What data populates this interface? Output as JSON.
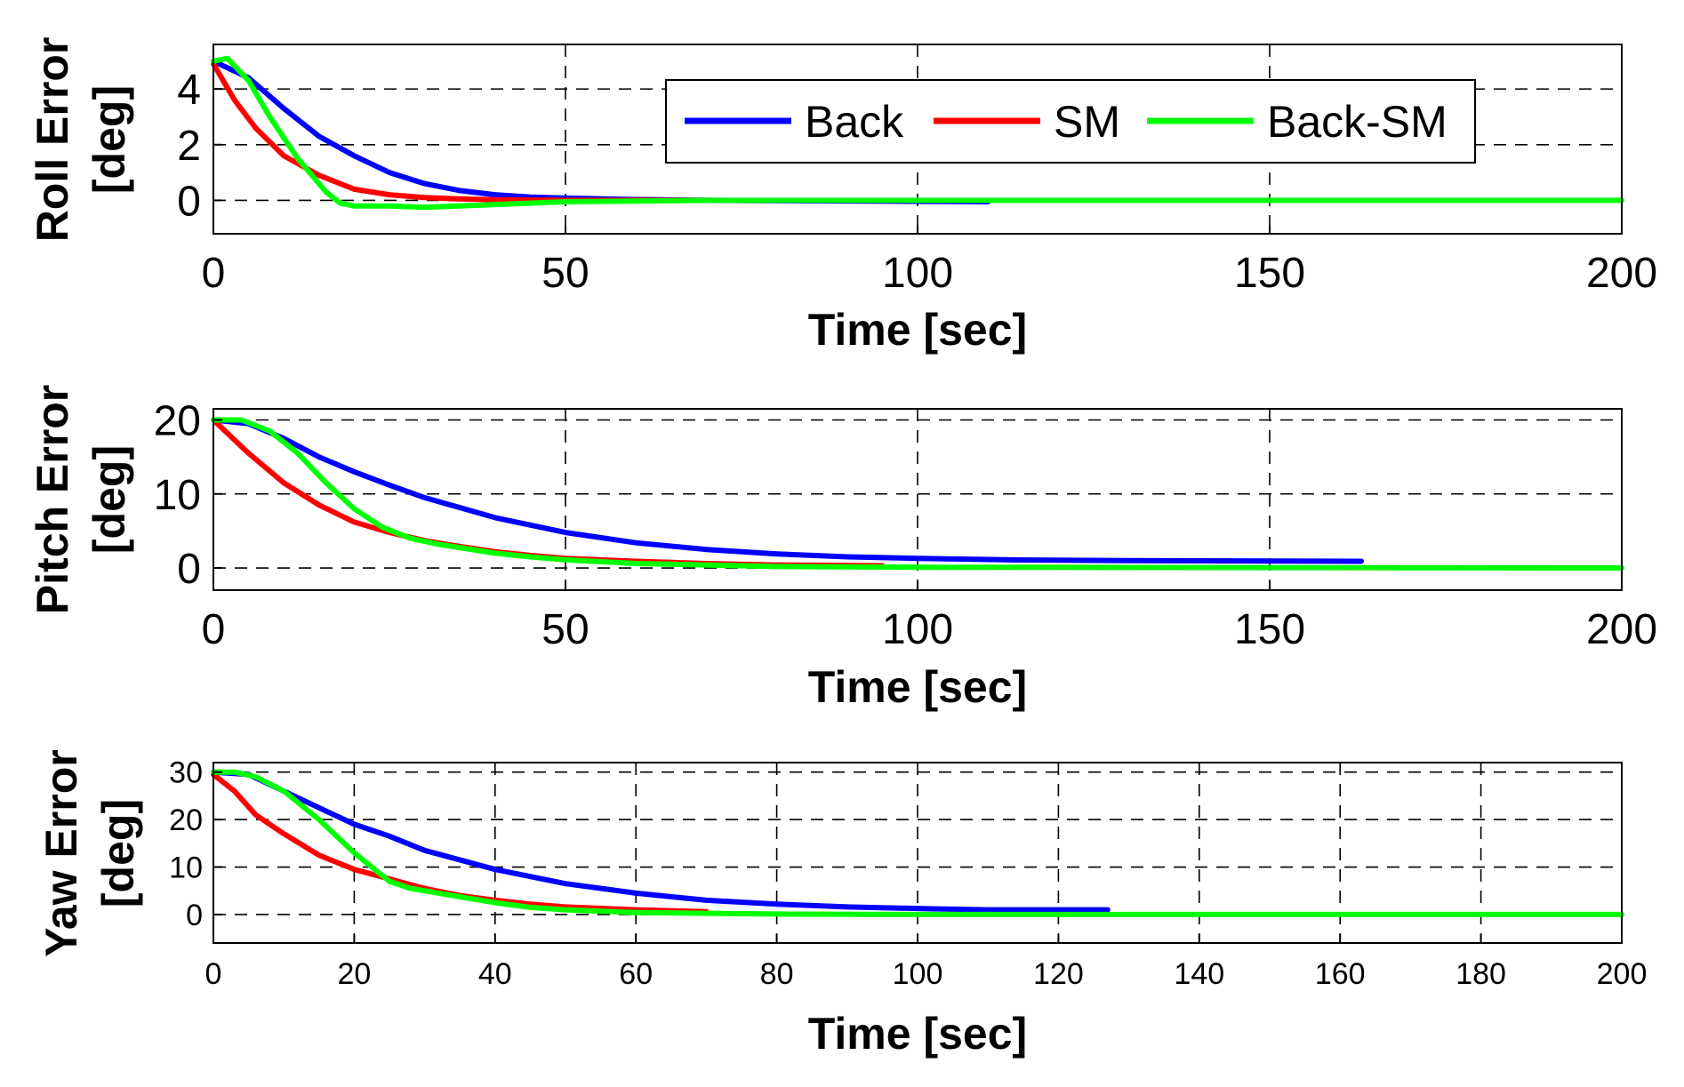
{
  "colors": {
    "back": "#0000ff",
    "sm": "#ff0000",
    "back_sm": "#00ff00",
    "grid": "#000000"
  },
  "legend": {
    "placement": "top-right of first subplot",
    "entries": [
      {
        "label": "Back",
        "color": "#0000ff"
      },
      {
        "label": "SM",
        "color": "#ff0000"
      },
      {
        "label": "Back-SM",
        "color": "#00ff00"
      }
    ]
  },
  "chart_data": [
    {
      "type": "line",
      "ylabel_line1": "Roll Error",
      "ylabel_line2": "[deg]",
      "xlabel": "Time [sec]",
      "xlim": [
        0,
        200
      ],
      "ylim": [
        -1.2,
        5.6
      ],
      "xticks": [
        0,
        50,
        100,
        150,
        200
      ],
      "xtick_labels": [
        "0",
        "50",
        "100",
        "150",
        "200"
      ],
      "yticks": [
        0,
        2,
        4
      ],
      "ytick_labels": [
        "0",
        "2",
        "4"
      ],
      "grid": true,
      "series": [
        {
          "name": "Back",
          "x": [
            0,
            5,
            10,
            15,
            20,
            25,
            30,
            35,
            40,
            45,
            50,
            60,
            70,
            110
          ],
          "y": [
            5,
            4.4,
            3.3,
            2.3,
            1.6,
            1.0,
            0.6,
            0.35,
            0.2,
            0.12,
            0.08,
            0.03,
            0.0,
            -0.05
          ]
        },
        {
          "name": "SM",
          "x": [
            0,
            3,
            6,
            10,
            15,
            20,
            25,
            30,
            35,
            40,
            50,
            70
          ],
          "y": [
            4.9,
            3.6,
            2.6,
            1.6,
            0.9,
            0.4,
            0.2,
            0.1,
            0.05,
            0.02,
            0.0,
            0.0
          ]
        },
        {
          "name": "Back-SM",
          "x": [
            0,
            2,
            5,
            8,
            12,
            16,
            18,
            20,
            25,
            30,
            35,
            40,
            50,
            70,
            200
          ],
          "y": [
            5,
            5.1,
            4.3,
            3.0,
            1.5,
            0.3,
            -0.1,
            -0.2,
            -0.2,
            -0.25,
            -0.2,
            -0.15,
            -0.05,
            0.0,
            0.0
          ]
        }
      ]
    },
    {
      "type": "line",
      "ylabel_line1": "Pitch Error",
      "ylabel_line2": "[deg]",
      "xlabel": "Time [sec]",
      "xlim": [
        0,
        200
      ],
      "ylim": [
        -3,
        21.5
      ],
      "xticks": [
        0,
        50,
        100,
        150,
        200
      ],
      "xtick_labels": [
        "0",
        "50",
        "100",
        "150",
        "200"
      ],
      "yticks": [
        0,
        10,
        20
      ],
      "ytick_labels": [
        "0",
        "10",
        "20"
      ],
      "grid": true,
      "series": [
        {
          "name": "Back",
          "x": [
            0,
            5,
            10,
            15,
            20,
            25,
            30,
            40,
            50,
            60,
            70,
            80,
            90,
            100,
            113,
            130,
            163
          ],
          "y": [
            20,
            19.5,
            17.5,
            15,
            13,
            11.2,
            9.5,
            6.8,
            4.8,
            3.4,
            2.5,
            1.9,
            1.5,
            1.3,
            1.1,
            1.0,
            0.9
          ]
        },
        {
          "name": "SM",
          "x": [
            0,
            5,
            10,
            15,
            20,
            25,
            30,
            35,
            40,
            45,
            50,
            60,
            70,
            80,
            95
          ],
          "y": [
            20,
            15.5,
            11.5,
            8.5,
            6.2,
            4.8,
            3.7,
            2.9,
            2.2,
            1.7,
            1.3,
            0.9,
            0.6,
            0.4,
            0.3
          ]
        },
        {
          "name": "Back-SM",
          "x": [
            0,
            4,
            8,
            12,
            16,
            20,
            24,
            28,
            32,
            36,
            40,
            45,
            50,
            60,
            80,
            100,
            200
          ],
          "y": [
            20,
            20,
            18.5,
            15.5,
            11.5,
            8.0,
            5.5,
            4.0,
            3.2,
            2.6,
            2.0,
            1.5,
            1.1,
            0.6,
            0.2,
            0.1,
            0.0
          ]
        }
      ]
    },
    {
      "type": "line",
      "ylabel_line1": "Yaw Error",
      "ylabel_line2": "[deg]",
      "xlabel": "Time [sec]",
      "xlim": [
        0,
        200
      ],
      "ylim": [
        -6,
        32
      ],
      "xticks": [
        0,
        20,
        40,
        60,
        80,
        100,
        120,
        140,
        160,
        180,
        200
      ],
      "xtick_labels": [
        "0",
        "20",
        "40",
        "60",
        "80",
        "100",
        "120",
        "140",
        "160",
        "180",
        "200"
      ],
      "yticks": [
        0,
        10,
        20,
        30
      ],
      "ytick_labels": [
        "0",
        "10",
        "20",
        "30"
      ],
      "grid": true,
      "series": [
        {
          "name": "Back",
          "x": [
            0,
            5,
            10,
            15,
            20,
            25,
            30,
            40,
            50,
            60,
            70,
            80,
            90,
            102,
            110,
            127
          ],
          "y": [
            30,
            29.5,
            26,
            22.5,
            19,
            16.5,
            13.5,
            9.5,
            6.5,
            4.5,
            3.0,
            2.2,
            1.6,
            1.2,
            1.0,
            1.0
          ]
        },
        {
          "name": "SM",
          "x": [
            0,
            3,
            6,
            10,
            15,
            20,
            25,
            30,
            35,
            40,
            45,
            50,
            60,
            70
          ],
          "y": [
            29.5,
            26,
            21,
            17,
            12.5,
            9.5,
            7.5,
            5.5,
            4.0,
            3.0,
            2.2,
            1.6,
            1.0,
            0.6
          ]
        },
        {
          "name": "Back-SM",
          "x": [
            0,
            3,
            6,
            10,
            15,
            20,
            25,
            28,
            32,
            36,
            40,
            45,
            50,
            60,
            80,
            100,
            200
          ],
          "y": [
            30,
            30,
            29,
            26,
            20,
            13,
            7,
            5.5,
            4.5,
            3.5,
            2.5,
            1.5,
            1.0,
            0.4,
            0.1,
            0.0,
            0.0
          ]
        }
      ]
    }
  ]
}
